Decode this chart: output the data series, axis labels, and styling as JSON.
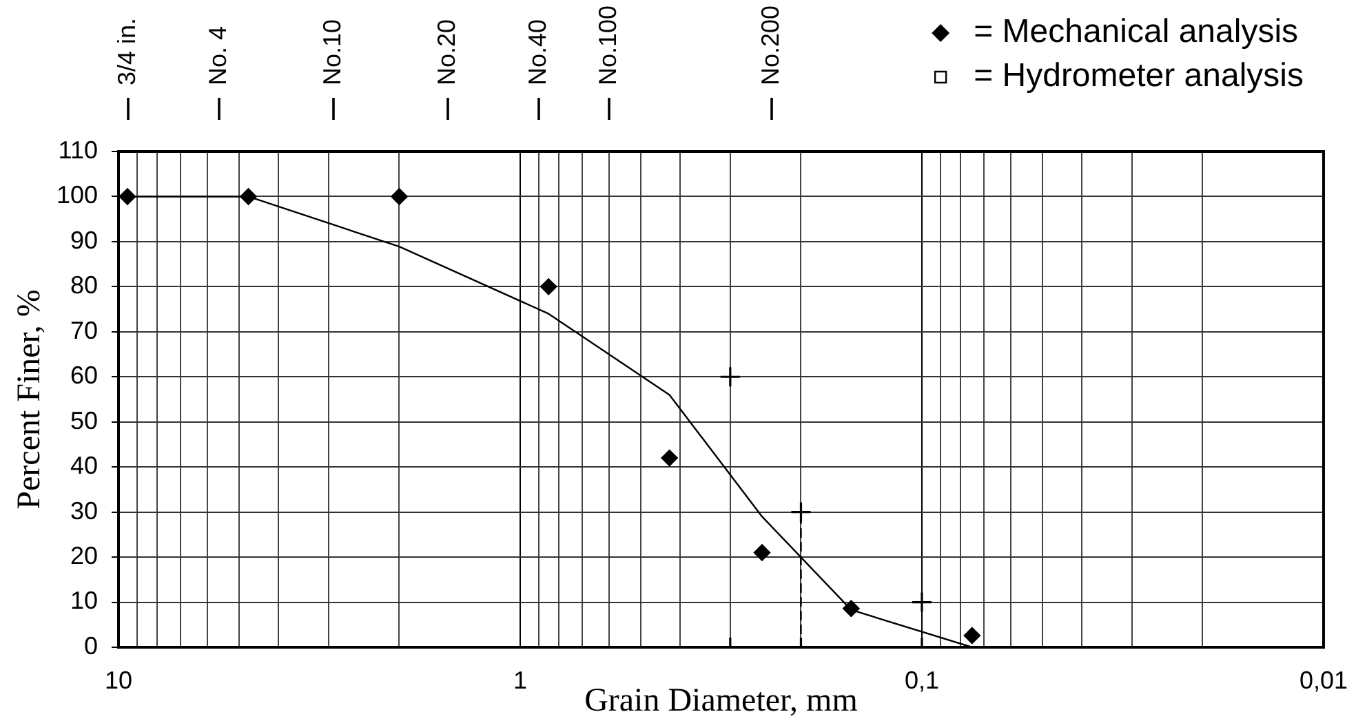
{
  "chart_data": {
    "type": "scatter",
    "xlabel": "Grain Diameter, mm",
    "ylabel": "Percent Finer, %",
    "xlim": [
      10,
      0.01
    ],
    "xticks": [
      10,
      {
        "value": 9,
        "label": null
      },
      {
        "value": 8,
        "label": null
      },
      {
        "value": 7,
        "label": null
      },
      {
        "value": 6,
        "label": null
      },
      {
        "value": 5,
        "label": null
      },
      {
        "value": 4,
        "label": null
      },
      {
        "value": 3,
        "label": null
      },
      {
        "value": 2,
        "label": null
      },
      1,
      {
        "value": 0.9,
        "label": null
      },
      {
        "value": 0.8,
        "label": null
      },
      {
        "value": 0.7,
        "label": null
      },
      {
        "value": 0.6,
        "label": null
      },
      {
        "value": 0.5,
        "label": null
      },
      {
        "value": 0.4,
        "label": null
      },
      {
        "value": 0.3,
        "label": null
      },
      {
        "value": 0.2,
        "label": null
      },
      {
        "value": 0.1,
        "label": "0,1"
      },
      {
        "value": 0.09,
        "label": null
      },
      {
        "value": 0.08,
        "label": null
      },
      {
        "value": 0.07,
        "label": null
      },
      {
        "value": 0.06,
        "label": null
      },
      {
        "value": 0.05,
        "label": null
      },
      {
        "value": 0.04,
        "label": null
      },
      {
        "value": 0.03,
        "label": null
      },
      {
        "value": 0.02,
        "label": null
      },
      {
        "value": 0.01,
        "label": "0,01"
      }
    ],
    "ylim": [
      0,
      110
    ],
    "yticks": [
      0,
      10,
      20,
      30,
      40,
      50,
      60,
      70,
      80,
      90,
      100,
      110
    ],
    "log": "x",
    "grid": true,
    "legend": "top right",
    "annotations": [
      "3/4 in.",
      "No. 4",
      "No.10",
      "No.20",
      "No.40",
      "No.100",
      "No.200"
    ],
    "series": [
      {
        "name": "= Mechanical analysis",
        "color": "#000000",
        "marker": "diamond",
        "x": [
          9.5,
          4.75,
          2,
          0.85,
          0.425,
          0.25,
          0.15,
          0.075
        ],
        "values": [
          100,
          100,
          100,
          80,
          42,
          21,
          8.6,
          2.6
        ]
      },
      {
        "name": "= Hydrometer analysis",
        "color": "#000000",
        "marker": "square"
      },
      {
        "type": "line",
        "color": "#000000",
        "marker": "none",
        "x": [
          9.5,
          4.75,
          2,
          0.85,
          0.425,
          0.25,
          0.15,
          0.075
        ],
        "values": [
          100,
          100,
          88.9,
          74,
          56,
          29,
          8.3,
          0
        ]
      },
      {
        "color": "#000000",
        "marker": "cross",
        "x": [
          0.3,
          0.2,
          0.1,
          0.3,
          0.2,
          0.1
        ],
        "values": [
          60,
          30,
          10,
          0,
          0,
          0
        ]
      },
      {
        "type": "line",
        "color": "#000000",
        "marker": "none",
        "line_style": "dashed",
        "x": [
          0.2,
          0.2
        ],
        "values": [
          0,
          30
        ]
      }
    ]
  }
}
